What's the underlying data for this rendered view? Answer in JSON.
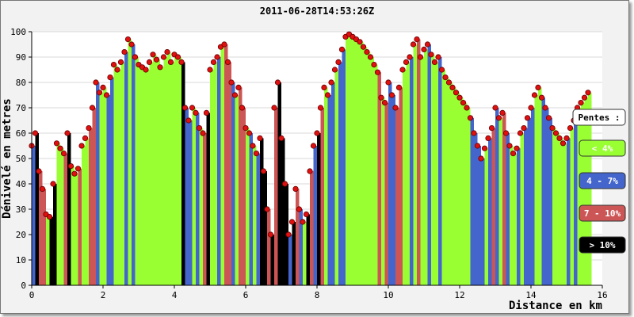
{
  "chart_data": {
    "type": "area",
    "title": "2011-06-28T14:53:26Z",
    "xlabel": "Distance en km",
    "ylabel": "Dénivelé en metres",
    "xlim": [
      0,
      16
    ],
    "ylim": [
      0,
      100
    ],
    "xticks": [
      "0",
      "2",
      "4",
      "6",
      "8",
      "10",
      "12",
      "14",
      "16"
    ],
    "yticks": [
      "0",
      "10",
      "20",
      "30",
      "40",
      "50",
      "60",
      "70",
      "80",
      "90",
      "100"
    ],
    "grid": true,
    "legend_position": "right",
    "legend_title": "Pentes :",
    "legend": [
      {
        "label": "< 4%",
        "color": "#99ff33"
      },
      {
        "label": "4 - 7%",
        "color": "#4466cc"
      },
      {
        "label": "7 - 10%",
        "color": "#cc5555"
      },
      {
        "label": "> 10%",
        "color": "#000000"
      }
    ],
    "series": [
      {
        "x": [
          0.0,
          0.1,
          0.2,
          0.3,
          0.4,
          0.5,
          0.6,
          0.7,
          0.8,
          0.9,
          1.0,
          1.1,
          1.2,
          1.3,
          1.4,
          1.5,
          1.6,
          1.7,
          1.8,
          1.9,
          2.0,
          2.1,
          2.2,
          2.3,
          2.4,
          2.5,
          2.6,
          2.7,
          2.8,
          2.9,
          3.0,
          3.1,
          3.2,
          3.3,
          3.4,
          3.5,
          3.6,
          3.7,
          3.8,
          3.9,
          4.0,
          4.1,
          4.2,
          4.3,
          4.4,
          4.5,
          4.6,
          4.7,
          4.8,
          4.9,
          5.0,
          5.1,
          5.2,
          5.3,
          5.4,
          5.5,
          5.6,
          5.7,
          5.8,
          5.9,
          6.0,
          6.1,
          6.2,
          6.3,
          6.4,
          6.5,
          6.6,
          6.7,
          6.8,
          6.9,
          7.0,
          7.1,
          7.2,
          7.3,
          7.4,
          7.5,
          7.6,
          7.7,
          7.8,
          7.9,
          8.0,
          8.1,
          8.2,
          8.3,
          8.4,
          8.5,
          8.6,
          8.7,
          8.8,
          8.9,
          9.0,
          9.1,
          9.2,
          9.3,
          9.4,
          9.5,
          9.6,
          9.7,
          9.8,
          9.9,
          10.0,
          10.1,
          10.2,
          10.3,
          10.4,
          10.5,
          10.6,
          10.7,
          10.8,
          10.9,
          11.0,
          11.1,
          11.2,
          11.3,
          11.4,
          11.5,
          11.6,
          11.7,
          11.8,
          11.9,
          12.0,
          12.1,
          12.2,
          12.3,
          12.4,
          12.5,
          12.6,
          12.7,
          12.8,
          12.9,
          13.0,
          13.1,
          13.2,
          13.3,
          13.4,
          13.5,
          13.6,
          13.7,
          13.8,
          13.9,
          14.0,
          14.1,
          14.2,
          14.3,
          14.4,
          14.5,
          14.6,
          14.7,
          14.8,
          14.9,
          15.0,
          15.1,
          15.2,
          15.3,
          15.4,
          15.5,
          15.6
        ],
        "y": [
          55,
          60,
          45,
          38,
          28,
          27,
          40,
          56,
          54,
          52,
          60,
          47,
          44,
          46,
          55,
          58,
          62,
          70,
          80,
          76,
          78,
          75,
          82,
          87,
          85,
          88,
          92,
          97,
          95,
          90,
          87,
          86,
          85,
          88,
          91,
          89,
          86,
          90,
          92,
          88,
          91,
          90,
          88,
          70,
          65,
          70,
          68,
          62,
          60,
          68,
          85,
          88,
          90,
          94,
          95,
          88,
          80,
          75,
          78,
          70,
          62,
          60,
          55,
          52,
          58,
          45,
          30,
          20,
          70,
          80,
          58,
          40,
          20,
          25,
          38,
          30,
          25,
          28,
          45,
          55,
          60,
          70,
          78,
          75,
          80,
          85,
          88,
          93,
          98,
          99,
          98,
          97,
          96,
          94,
          92,
          90,
          87,
          84,
          74,
          72,
          80,
          75,
          70,
          78,
          85,
          88,
          90,
          95,
          97,
          90,
          93,
          95,
          91,
          88,
          90,
          85,
          82,
          80,
          78,
          76,
          74,
          72,
          70,
          66,
          60,
          55,
          50,
          54,
          58,
          62,
          70,
          66,
          68,
          60,
          55,
          52,
          54,
          60,
          62,
          66,
          70,
          75,
          78,
          74,
          70,
          66,
          62,
          60,
          58,
          56,
          58,
          62,
          65,
          70,
          72,
          74,
          76
        ]
      }
    ]
  }
}
